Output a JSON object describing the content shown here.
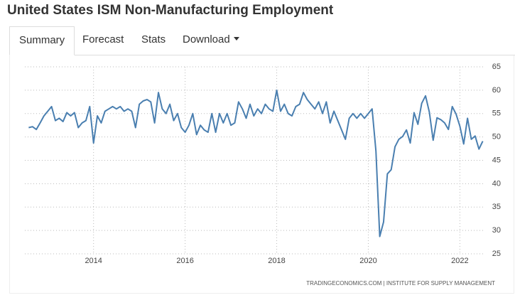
{
  "header": {
    "title": "United States ISM Non-Manufacturing Employment"
  },
  "tabs": [
    "Summary",
    "Forecast",
    "Stats",
    "Download"
  ],
  "chart_data": {
    "type": "line",
    "source": "TRADINGECONOMICS.COM | INSTITUTE FOR SUPPLY MANAGEMENT",
    "color": "#4a7fb0",
    "grid": true,
    "xlim": [
      "2012-07",
      "2022-08"
    ],
    "xticks": [
      {
        "value": "2014-01",
        "label": "2014"
      },
      {
        "value": "2016-01",
        "label": "2016"
      },
      {
        "value": "2018-01",
        "label": "2018"
      },
      {
        "value": "2020-01",
        "label": "2020"
      },
      {
        "value": "2022-01",
        "label": "2022"
      }
    ],
    "ylim": [
      25,
      65
    ],
    "yticks": [
      25,
      30,
      35,
      40,
      45,
      50,
      55,
      60,
      65
    ],
    "x": [
      "2012-08",
      "2012-09",
      "2012-10",
      "2012-11",
      "2012-12",
      "2013-01",
      "2013-02",
      "2013-03",
      "2013-04",
      "2013-05",
      "2013-06",
      "2013-07",
      "2013-08",
      "2013-09",
      "2013-10",
      "2013-11",
      "2013-12",
      "2014-01",
      "2014-02",
      "2014-03",
      "2014-04",
      "2014-05",
      "2014-06",
      "2014-07",
      "2014-08",
      "2014-09",
      "2014-10",
      "2014-11",
      "2014-12",
      "2015-01",
      "2015-02",
      "2015-03",
      "2015-04",
      "2015-05",
      "2015-06",
      "2015-07",
      "2015-08",
      "2015-09",
      "2015-10",
      "2015-11",
      "2015-12",
      "2016-01",
      "2016-02",
      "2016-03",
      "2016-04",
      "2016-05",
      "2016-06",
      "2016-07",
      "2016-08",
      "2016-09",
      "2016-10",
      "2016-11",
      "2016-12",
      "2017-01",
      "2017-02",
      "2017-03",
      "2017-04",
      "2017-05",
      "2017-06",
      "2017-07",
      "2017-08",
      "2017-09",
      "2017-10",
      "2017-11",
      "2017-12",
      "2018-01",
      "2018-02",
      "2018-03",
      "2018-04",
      "2018-05",
      "2018-06",
      "2018-07",
      "2018-08",
      "2018-09",
      "2018-10",
      "2018-11",
      "2018-12",
      "2019-01",
      "2019-02",
      "2019-03",
      "2019-04",
      "2019-05",
      "2019-06",
      "2019-07",
      "2019-08",
      "2019-09",
      "2019-10",
      "2019-11",
      "2019-12",
      "2020-01",
      "2020-02",
      "2020-03",
      "2020-04",
      "2020-05",
      "2020-06",
      "2020-07",
      "2020-08",
      "2020-09",
      "2020-10",
      "2020-11",
      "2020-12",
      "2021-01",
      "2021-02",
      "2021-03",
      "2021-04",
      "2021-05",
      "2021-06",
      "2021-07",
      "2021-08",
      "2021-09",
      "2021-10",
      "2021-11",
      "2021-12",
      "2022-01",
      "2022-02",
      "2022-03",
      "2022-04",
      "2022-05",
      "2022-06",
      "2022-07"
    ],
    "values": [
      52,
      52.2,
      51.6,
      53,
      54.5,
      55.5,
      56.5,
      53.5,
      54,
      53.3,
      55.2,
      54.5,
      55.2,
      52,
      53,
      53.5,
      56.5,
      48.7,
      54.5,
      53,
      55.5,
      56,
      56.5,
      56,
      56.5,
      55.5,
      56,
      55.5,
      52,
      57,
      57.7,
      58,
      57.5,
      53,
      59.5,
      56,
      55,
      57,
      53.5,
      55,
      52,
      51,
      52.5,
      55,
      50.5,
      52.5,
      51.5,
      51,
      55,
      51,
      55,
      53,
      55,
      52.5,
      53,
      57.5,
      56,
      54,
      57,
      54.5,
      56,
      55,
      57,
      56,
      55.5,
      60,
      55.5,
      57,
      55,
      54.5,
      56.5,
      57,
      59.5,
      58,
      57,
      56,
      57.5,
      55,
      57.5,
      53,
      55.5,
      53.5,
      51.5,
      49.5,
      54,
      55,
      54,
      55,
      54,
      55,
      56,
      47,
      28.7,
      31.8,
      42.1,
      43,
      47.9,
      49.5,
      50.1,
      51.5,
      48.7,
      55.2,
      52.7,
      57.2,
      58.8,
      55.3,
      49.3,
      54.1,
      53.7,
      53,
      51.6,
      56.5,
      54.9,
      52.3,
      48.5,
      54,
      49.5,
      50.2,
      47.4,
      49.1
    ]
  }
}
